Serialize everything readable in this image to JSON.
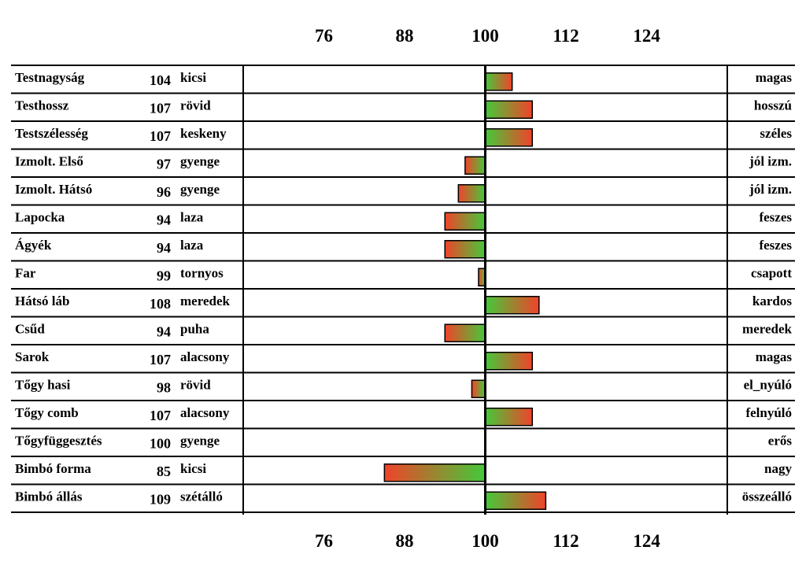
{
  "chart_data": {
    "type": "bar",
    "center": 100,
    "xlim": [
      64,
      136
    ],
    "xticks": [
      76,
      88,
      100,
      112,
      124
    ],
    "colors": {
      "positive": [
        "#44c93a",
        "#f0432a"
      ],
      "negative": [
        "#f0432a",
        "#44c93a"
      ],
      "border": "#000000"
    },
    "rows": [
      {
        "trait": "Testnagyság",
        "value": 104,
        "low": "kicsi",
        "high": "magas"
      },
      {
        "trait": "Testhossz",
        "value": 107,
        "low": "rövid",
        "high": "hosszú"
      },
      {
        "trait": "Testszélesség",
        "value": 107,
        "low": "keskeny",
        "high": "széles"
      },
      {
        "trait": "Izmolt. Első",
        "value": 97,
        "low": "gyenge",
        "high": "jól izm."
      },
      {
        "trait": "Izmolt. Hátsó",
        "value": 96,
        "low": "gyenge",
        "high": "jól izm."
      },
      {
        "trait": "Lapocka",
        "value": 94,
        "low": "laza",
        "high": "feszes"
      },
      {
        "trait": "Ágyék",
        "value": 94,
        "low": "laza",
        "high": "feszes"
      },
      {
        "trait": "Far",
        "value": 99,
        "low": "tornyos",
        "high": "csapott"
      },
      {
        "trait": "Hátsó láb",
        "value": 108,
        "low": "meredek",
        "high": "kardos"
      },
      {
        "trait": "Csűd",
        "value": 94,
        "low": "puha",
        "high": "meredek"
      },
      {
        "trait": "Sarok",
        "value": 107,
        "low": "alacsony",
        "high": "magas"
      },
      {
        "trait": "Tőgy hasi",
        "value": 98,
        "low": "rövid",
        "high": "el_nyúló"
      },
      {
        "trait": "Tőgy comb",
        "value": 107,
        "low": "alacsony",
        "high": "felnyúló"
      },
      {
        "trait": "Tőgyfüggesztés",
        "value": 100,
        "low": "gyenge",
        "high": "erős"
      },
      {
        "trait": "Bimbó forma",
        "value": 85,
        "low": "kicsi",
        "high": "nagy"
      },
      {
        "trait": "Bimbó állás",
        "value": 109,
        "low": "szétálló",
        "high": "összeálló"
      }
    ]
  }
}
